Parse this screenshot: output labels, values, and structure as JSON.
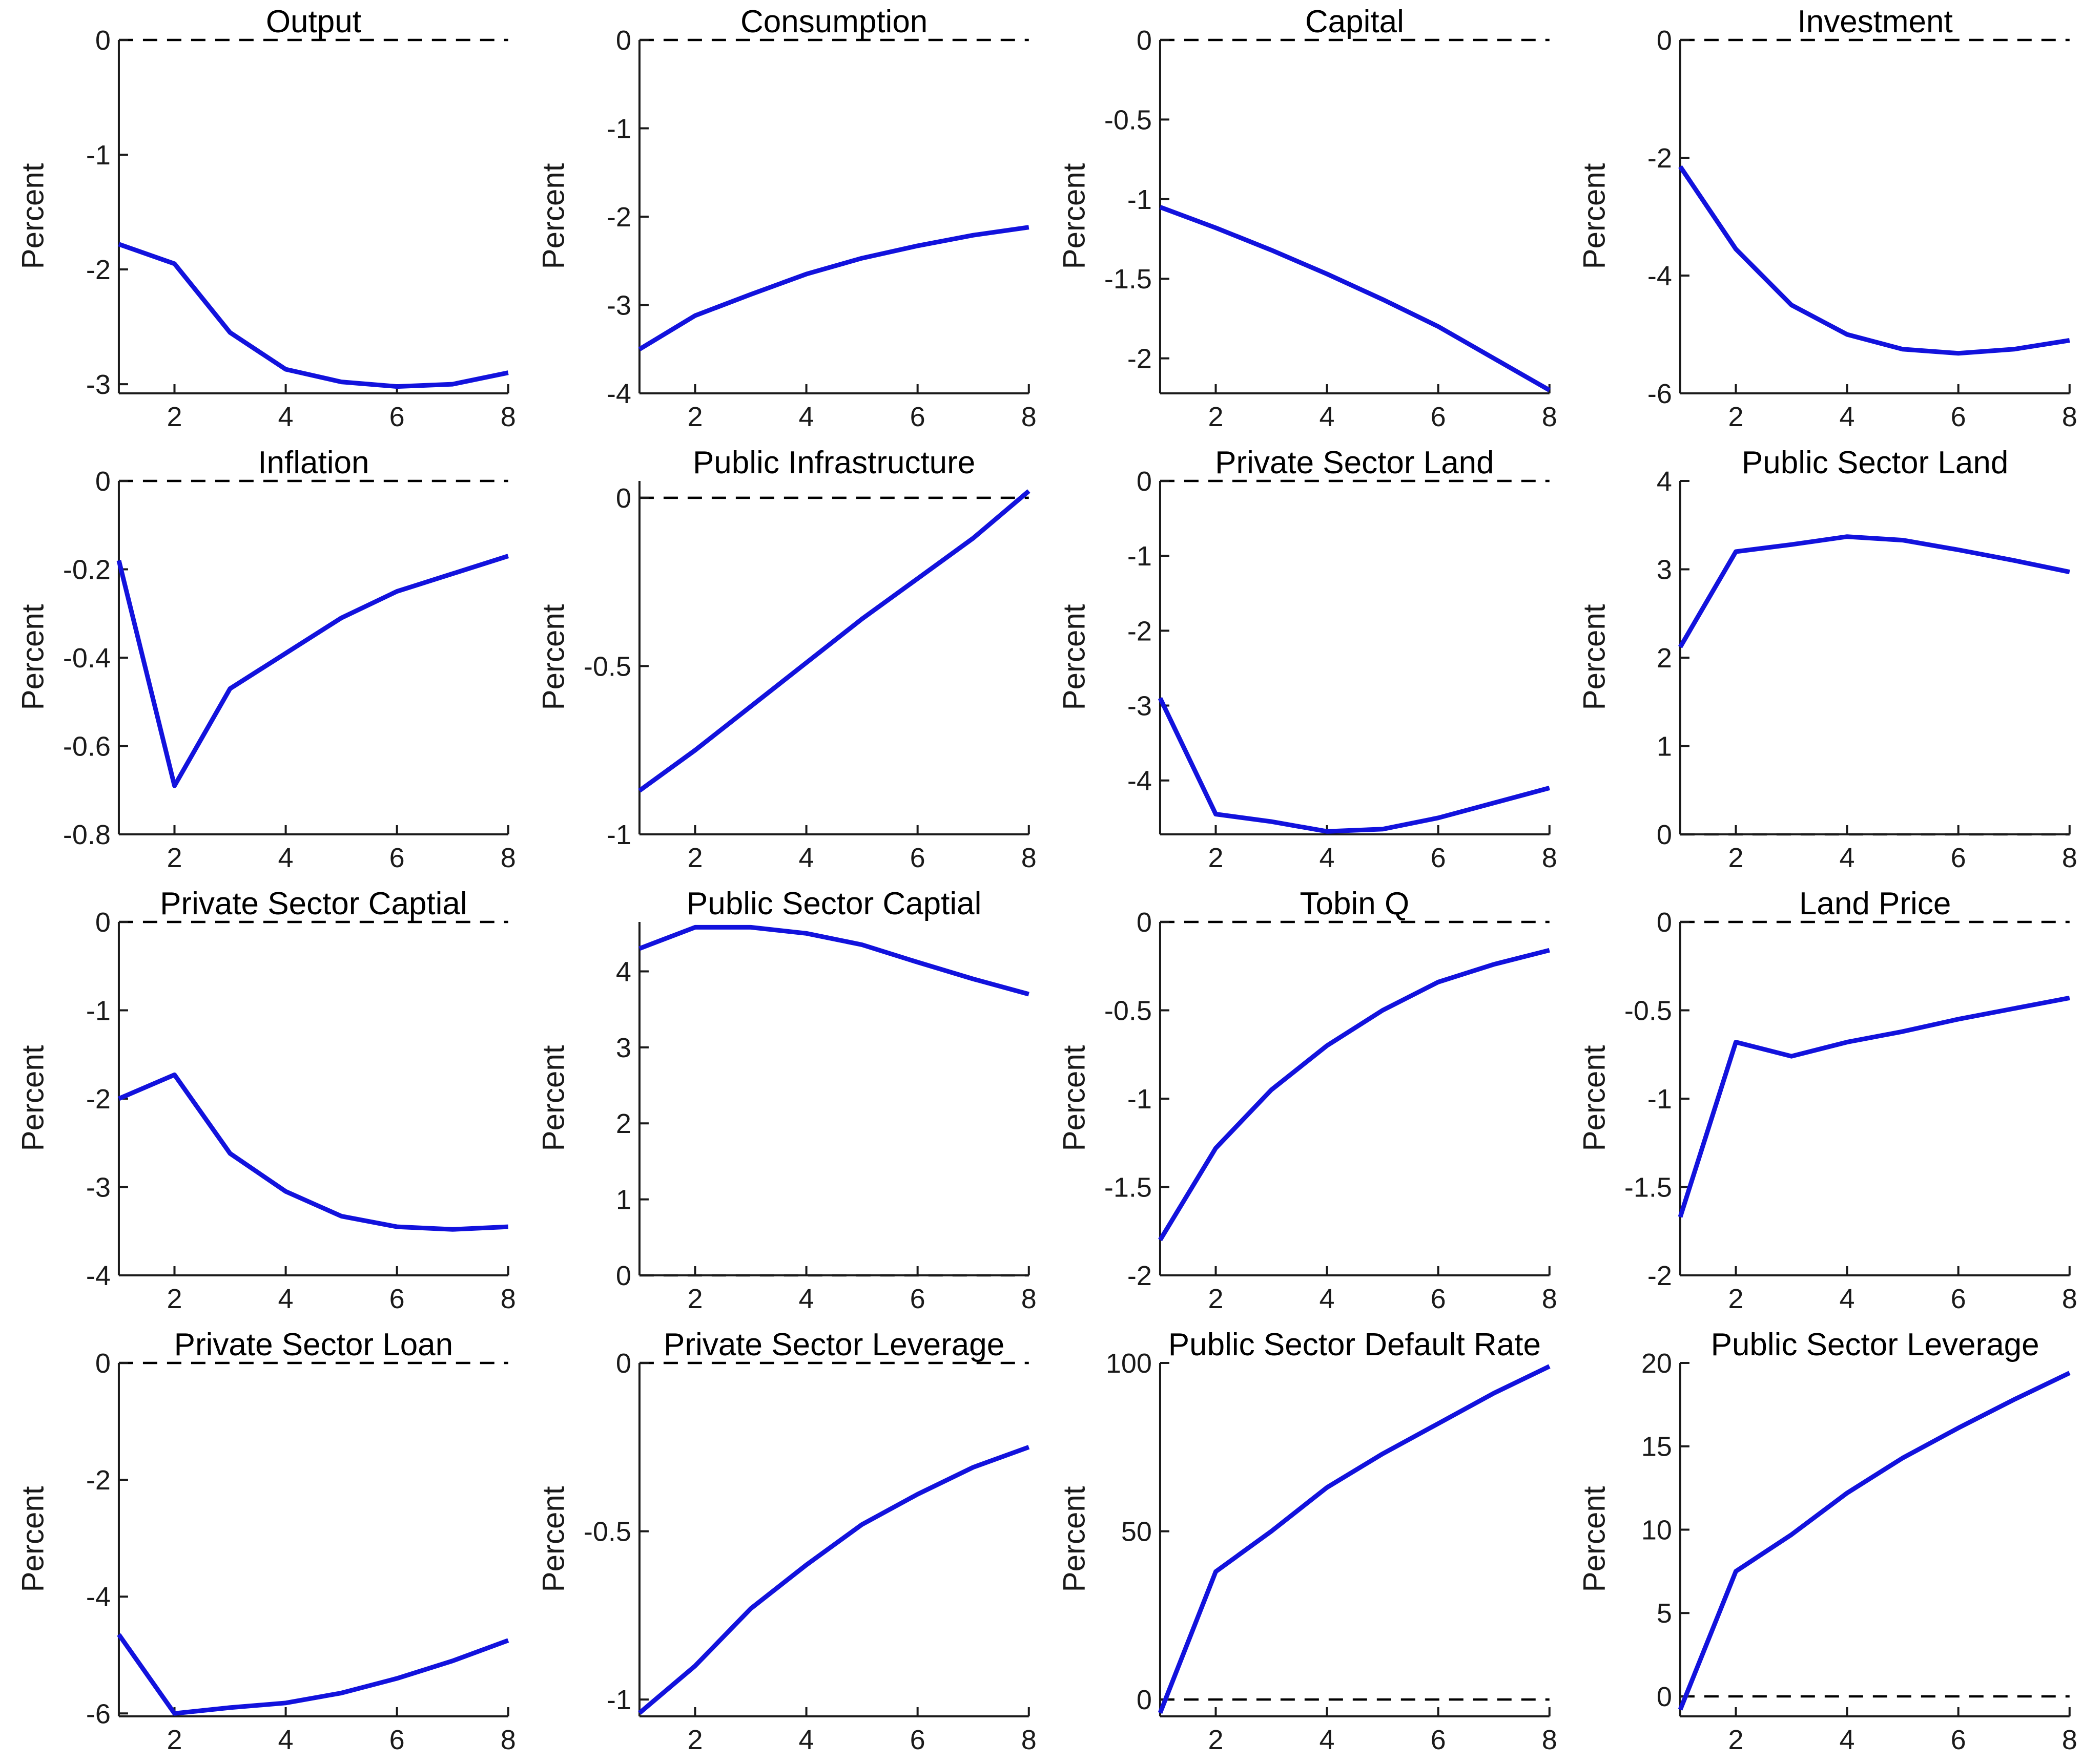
{
  "style": {
    "line_color": "#1212dd",
    "axis_color": "#1a1a1a",
    "zero_line_color": "#000000",
    "tick_label_color": "#1a1a1a",
    "title_color": "#000000",
    "background": "#ffffff"
  },
  "chart_data": [
    {
      "type": "line",
      "title": "Output",
      "ylabel": "Percent",
      "x": [
        1,
        2,
        3,
        4,
        5,
        6,
        7,
        8
      ],
      "values": [
        -1.78,
        -1.95,
        -2.55,
        -2.87,
        -2.98,
        -3.02,
        -3.0,
        -2.9
      ],
      "ylim": [
        -3.08,
        0
      ],
      "yticks": [
        0,
        -1,
        -2,
        -3
      ],
      "xticks": [
        2,
        4,
        6,
        8
      ],
      "zero_line": 0,
      "grid": false,
      "legend": null
    },
    {
      "type": "line",
      "title": "Consumption",
      "ylabel": "Percent",
      "x": [
        1,
        2,
        3,
        4,
        5,
        6,
        7,
        8
      ],
      "values": [
        -3.5,
        -3.12,
        -2.88,
        -2.65,
        -2.47,
        -2.33,
        -2.21,
        -2.12
      ],
      "ylim": [
        -4,
        0
      ],
      "yticks": [
        0,
        -1,
        -2,
        -3,
        -4
      ],
      "xticks": [
        2,
        4,
        6,
        8
      ],
      "zero_line": 0,
      "grid": false,
      "legend": null
    },
    {
      "type": "line",
      "title": "Capital",
      "ylabel": "Percent",
      "x": [
        1,
        2,
        3,
        4,
        5,
        6,
        7,
        8
      ],
      "values": [
        -1.05,
        -1.18,
        -1.32,
        -1.47,
        -1.63,
        -1.8,
        -2.0,
        -2.2
      ],
      "ylim": [
        -2.22,
        0
      ],
      "yticks": [
        0,
        -0.5,
        -1,
        -1.5,
        -2
      ],
      "xticks": [
        2,
        4,
        6,
        8
      ],
      "zero_line": 0,
      "grid": false,
      "legend": null
    },
    {
      "type": "line",
      "title": "Investment",
      "ylabel": "Percent",
      "x": [
        1,
        2,
        3,
        4,
        5,
        6,
        7,
        8
      ],
      "values": [
        -2.15,
        -3.55,
        -4.5,
        -5.0,
        -5.25,
        -5.32,
        -5.25,
        -5.1
      ],
      "ylim": [
        -6,
        0
      ],
      "yticks": [
        0,
        -2,
        -4,
        -6
      ],
      "xticks": [
        2,
        4,
        6,
        8
      ],
      "zero_line": 0,
      "grid": false,
      "legend": null
    },
    {
      "type": "line",
      "title": "Inflation",
      "ylabel": "Percent",
      "x": [
        1,
        2,
        3,
        4,
        5,
        6,
        7,
        8
      ],
      "values": [
        -0.18,
        -0.69,
        -0.47,
        -0.39,
        -0.31,
        -0.25,
        -0.21,
        -0.17
      ],
      "ylim": [
        -0.8,
        0
      ],
      "yticks": [
        0,
        -0.2,
        -0.4,
        -0.6,
        -0.8
      ],
      "xticks": [
        2,
        4,
        6,
        8
      ],
      "zero_line": 0,
      "grid": false,
      "legend": null
    },
    {
      "type": "line",
      "title": "Public Infrastructure",
      "ylabel": "Percent",
      "x": [
        1,
        2,
        3,
        4,
        5,
        6,
        7,
        8
      ],
      "values": [
        -0.87,
        -0.75,
        -0.62,
        -0.49,
        -0.36,
        -0.24,
        -0.12,
        0.02
      ],
      "ylim": [
        -1,
        0.05
      ],
      "yticks": [
        0,
        -0.5,
        -1
      ],
      "xticks": [
        2,
        4,
        6,
        8
      ],
      "zero_line": 0,
      "grid": false,
      "legend": null
    },
    {
      "type": "line",
      "title": "Private Sector Land",
      "ylabel": "Percent",
      "x": [
        1,
        2,
        3,
        4,
        5,
        6,
        7,
        8
      ],
      "values": [
        -2.9,
        -4.45,
        -4.55,
        -4.68,
        -4.65,
        -4.5,
        -4.3,
        -4.1
      ],
      "ylim": [
        -4.72,
        0
      ],
      "yticks": [
        0,
        -1,
        -2,
        -3,
        -4
      ],
      "xticks": [
        2,
        4,
        6,
        8
      ],
      "zero_line": 0,
      "grid": false,
      "legend": null
    },
    {
      "type": "line",
      "title": "Public Sector Land",
      "ylabel": "Percent",
      "x": [
        1,
        2,
        3,
        4,
        5,
        6,
        7,
        8
      ],
      "values": [
        2.12,
        3.2,
        3.28,
        3.37,
        3.33,
        3.22,
        3.1,
        2.97
      ],
      "ylim": [
        0,
        4
      ],
      "yticks": [
        0,
        1,
        2,
        3,
        4
      ],
      "xticks": [
        2,
        4,
        6,
        8
      ],
      "zero_line": 0,
      "grid": false,
      "legend": null
    },
    {
      "type": "line",
      "title": "Private Sector Captial",
      "ylabel": "Percent",
      "x": [
        1,
        2,
        3,
        4,
        5,
        6,
        7,
        8
      ],
      "values": [
        -2.0,
        -1.73,
        -2.62,
        -3.05,
        -3.33,
        -3.45,
        -3.48,
        -3.45
      ],
      "ylim": [
        -4,
        0
      ],
      "yticks": [
        0,
        -1,
        -2,
        -3,
        -4
      ],
      "xticks": [
        2,
        4,
        6,
        8
      ],
      "zero_line": 0,
      "grid": false,
      "legend": null
    },
    {
      "type": "line",
      "title": "Public Sector Captial",
      "ylabel": "Percent",
      "x": [
        1,
        2,
        3,
        4,
        5,
        6,
        7,
        8
      ],
      "values": [
        4.3,
        4.58,
        4.58,
        4.5,
        4.35,
        4.12,
        3.9,
        3.7
      ],
      "ylim": [
        0,
        4.65
      ],
      "yticks": [
        0,
        1,
        2,
        3,
        4
      ],
      "xticks": [
        2,
        4,
        6,
        8
      ],
      "zero_line": 0,
      "grid": false,
      "legend": null
    },
    {
      "type": "line",
      "title": "Tobin Q",
      "ylabel": "Percent",
      "x": [
        1,
        2,
        3,
        4,
        5,
        6,
        7,
        8
      ],
      "values": [
        -1.8,
        -1.28,
        -0.95,
        -0.7,
        -0.5,
        -0.34,
        -0.24,
        -0.16
      ],
      "ylim": [
        -2,
        0
      ],
      "yticks": [
        0,
        -0.5,
        -1,
        -1.5,
        -2
      ],
      "xticks": [
        2,
        4,
        6,
        8
      ],
      "zero_line": 0,
      "grid": false,
      "legend": null
    },
    {
      "type": "line",
      "title": "Land Price",
      "ylabel": "Percent",
      "x": [
        1,
        2,
        3,
        4,
        5,
        6,
        7,
        8
      ],
      "values": [
        -1.67,
        -0.68,
        -0.76,
        -0.68,
        -0.62,
        -0.55,
        -0.49,
        -0.43
      ],
      "ylim": [
        -2,
        0
      ],
      "yticks": [
        0,
        -0.5,
        -1,
        -1.5,
        -2
      ],
      "xticks": [
        2,
        4,
        6,
        8
      ],
      "zero_line": 0,
      "grid": false,
      "legend": null
    },
    {
      "type": "line",
      "title": "Private Sector Loan",
      "ylabel": "Percent",
      "x": [
        1,
        2,
        3,
        4,
        5,
        6,
        7,
        8
      ],
      "values": [
        -4.65,
        -6.0,
        -5.9,
        -5.82,
        -5.65,
        -5.4,
        -5.1,
        -4.75
      ],
      "ylim": [
        -6.05,
        0
      ],
      "yticks": [
        0,
        -2,
        -4,
        -6
      ],
      "xticks": [
        2,
        4,
        6,
        8
      ],
      "zero_line": 0,
      "grid": false,
      "legend": null
    },
    {
      "type": "line",
      "title": "Private Sector Leverage",
      "ylabel": "Percent",
      "x": [
        1,
        2,
        3,
        4,
        5,
        6,
        7,
        8
      ],
      "values": [
        -1.04,
        -0.9,
        -0.73,
        -0.6,
        -0.48,
        -0.39,
        -0.31,
        -0.25
      ],
      "ylim": [
        -1.05,
        0
      ],
      "yticks": [
        0,
        -0.5,
        -1
      ],
      "xticks": [
        2,
        4,
        6,
        8
      ],
      "zero_line": 0,
      "grid": false,
      "legend": null
    },
    {
      "type": "line",
      "title": "Public Sector Default Rate",
      "ylabel": "Percent",
      "x": [
        1,
        2,
        3,
        4,
        5,
        6,
        7,
        8
      ],
      "values": [
        -4,
        38,
        50,
        63,
        73,
        82,
        91,
        99
      ],
      "ylim": [
        -5,
        100
      ],
      "yticks": [
        0,
        50,
        100
      ],
      "xticks": [
        2,
        4,
        6,
        8
      ],
      "zero_line": 0,
      "grid": false,
      "legend": null
    },
    {
      "type": "line",
      "title": "Public Sector Leverage",
      "ylabel": "Percent",
      "x": [
        1,
        2,
        3,
        4,
        5,
        6,
        7,
        8
      ],
      "values": [
        -0.8,
        7.5,
        9.7,
        12.2,
        14.3,
        16.1,
        17.8,
        19.4
      ],
      "ylim": [
        -1.2,
        20
      ],
      "yticks": [
        0,
        5,
        10,
        15,
        20
      ],
      "xticks": [
        2,
        4,
        6,
        8
      ],
      "zero_line": 0,
      "grid": false,
      "legend": null
    }
  ]
}
